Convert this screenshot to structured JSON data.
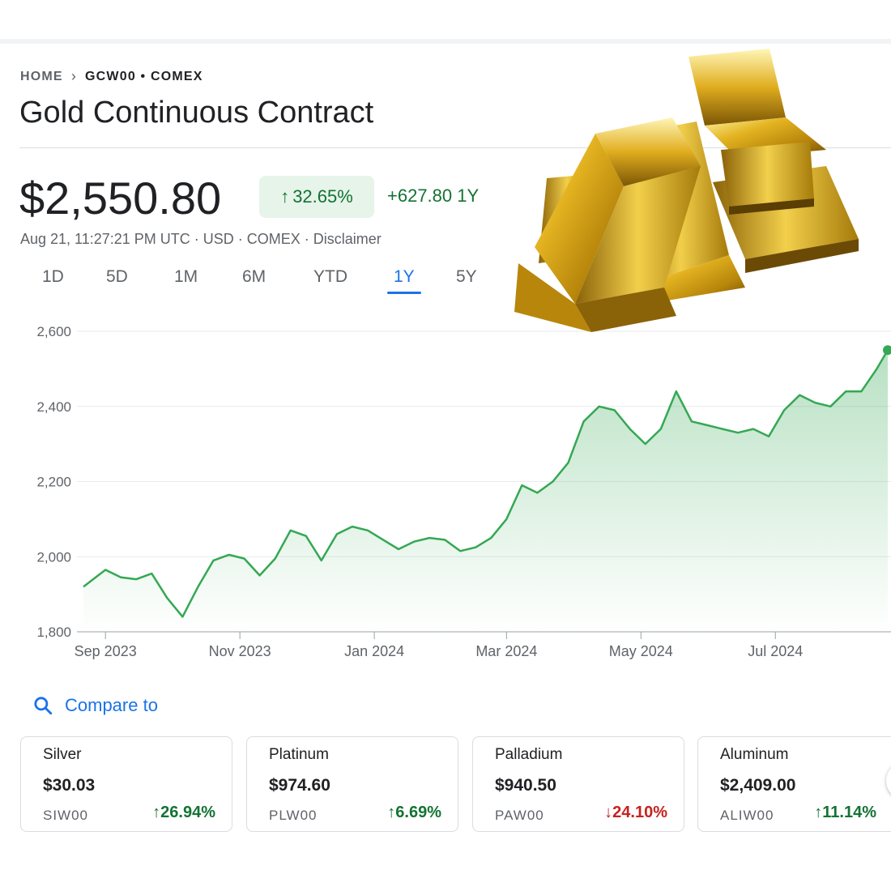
{
  "breadcrumb": {
    "home": "HOME",
    "symbol": "GCW00 • COMEX"
  },
  "title": "Gold Continuous Contract",
  "quote": {
    "price": "$2,550.80",
    "pct_change": "32.65%",
    "abs_change": "+627.80 1Y",
    "meta": "Aug 21, 11:27:21 PM UTC · USD · COMEX · Disclaimer"
  },
  "tabs": [
    "1D",
    "5D",
    "1M",
    "6M",
    "YTD",
    "1Y",
    "5Y"
  ],
  "active_tab": "1Y",
  "compare": {
    "label": "Compare to"
  },
  "cards": [
    {
      "name": "Silver",
      "value": "$30.03",
      "symbol": "SIW00",
      "change": "26.94%",
      "direction": "up"
    },
    {
      "name": "Platinum",
      "value": "$974.60",
      "symbol": "PLW00",
      "change": "6.69%",
      "direction": "up"
    },
    {
      "name": "Palladium",
      "value": "$940.50",
      "symbol": "PAW00",
      "change": "24.10%",
      "direction": "down"
    },
    {
      "name": "Aluminum",
      "value": "$2,409.00",
      "symbol": "ALIW00",
      "change": "11.14%",
      "direction": "up"
    }
  ],
  "colors": {
    "up": "#137333",
    "down": "#c5221f",
    "line": "#34a853",
    "accent": "#1a73e8"
  },
  "chart_data": {
    "type": "area",
    "yticks": [
      "2,600",
      "2,400",
      "2,200",
      "2,000",
      "1,800"
    ],
    "xticks": [
      "Sep 2023",
      "Nov 2023",
      "Jan 2024",
      "Mar 2024",
      "May 2024",
      "Jul 2024"
    ],
    "ylim": [
      1800,
      2600
    ],
    "x_dates": [
      "2023-08-22",
      "2023-09-01",
      "2023-09-08",
      "2023-09-15",
      "2023-09-22",
      "2023-09-29",
      "2023-10-06",
      "2023-10-13",
      "2023-10-20",
      "2023-10-27",
      "2023-11-03",
      "2023-11-10",
      "2023-11-17",
      "2023-11-24",
      "2023-12-01",
      "2023-12-08",
      "2023-12-15",
      "2023-12-22",
      "2023-12-29",
      "2024-01-05",
      "2024-01-12",
      "2024-01-19",
      "2024-01-26",
      "2024-02-02",
      "2024-02-09",
      "2024-02-16",
      "2024-02-23",
      "2024-03-01",
      "2024-03-08",
      "2024-03-15",
      "2024-03-22",
      "2024-03-29",
      "2024-04-05",
      "2024-04-12",
      "2024-04-19",
      "2024-04-26",
      "2024-05-03",
      "2024-05-10",
      "2024-05-17",
      "2024-05-24",
      "2024-05-31",
      "2024-06-07",
      "2024-06-14",
      "2024-06-21",
      "2024-06-28",
      "2024-07-05",
      "2024-07-12",
      "2024-07-19",
      "2024-07-26",
      "2024-08-02",
      "2024-08-09",
      "2024-08-16",
      "2024-08-21"
    ],
    "values": [
      1920,
      1965,
      1945,
      1940,
      1955,
      1890,
      1840,
      1920,
      1990,
      2005,
      1995,
      1950,
      1995,
      2070,
      2055,
      1990,
      2060,
      2080,
      2070,
      2045,
      2020,
      2040,
      2050,
      2045,
      2015,
      2025,
      2050,
      2100,
      2190,
      2170,
      2200,
      2250,
      2360,
      2400,
      2390,
      2340,
      2300,
      2340,
      2440,
      2360,
      2350,
      2340,
      2330,
      2340,
      2320,
      2390,
      2430,
      2410,
      2400,
      2440,
      2440,
      2500,
      2550
    ],
    "series": [
      {
        "name": "",
        "values": []
      }
    ]
  }
}
